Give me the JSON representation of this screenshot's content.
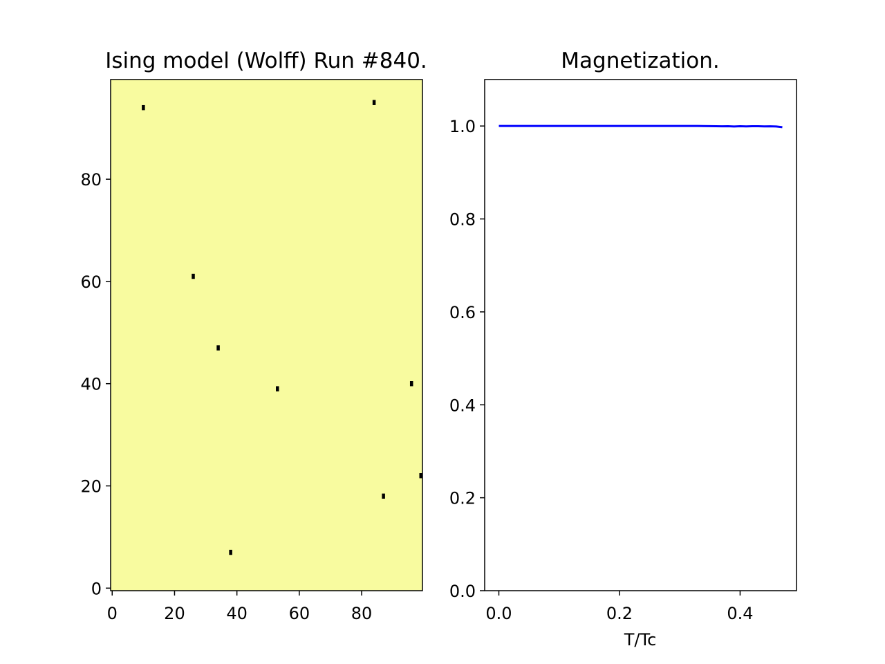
{
  "chart_data": [
    {
      "type": "heatmap",
      "title": "Ising model (Wolff) Run #840.",
      "xlabel": "",
      "ylabel": "",
      "grid_shape": [
        100,
        100
      ],
      "xlim": [
        -0.5,
        99.5
      ],
      "ylim": [
        99.5,
        -0.5
      ],
      "xticks": [
        0,
        20,
        40,
        60,
        80
      ],
      "yticks": [
        0,
        20,
        40,
        60,
        80
      ],
      "background_spin": 1,
      "background_color": "#f8fb9f",
      "flipped_spin_color": "#000000",
      "flipped_spins": [
        {
          "col": 38,
          "row": 8
        },
        {
          "col": 87,
          "row": 19
        },
        {
          "col": 99,
          "row": 23
        },
        {
          "col": 53,
          "row": 40
        },
        {
          "col": 96,
          "row": 41
        },
        {
          "col": 34,
          "row": 48
        },
        {
          "col": 26,
          "row": 62
        },
        {
          "col": 10,
          "row": 95
        },
        {
          "col": 84,
          "row": 96
        }
      ],
      "grid": false
    },
    {
      "type": "line",
      "title": "Magnetization.",
      "xlabel": "T/Tc",
      "ylabel": "",
      "xlim": [
        -0.0235,
        0.4935
      ],
      "ylim": [
        0.0,
        1.1
      ],
      "xticks": [
        "0.0",
        "0.2",
        "0.4"
      ],
      "yticks": [
        "0.0",
        "0.2",
        "0.4",
        "0.6",
        "0.8",
        "1.0"
      ],
      "grid": false,
      "series": [
        {
          "color": "#0000ff",
          "x": [
            0.0,
            0.05,
            0.1,
            0.15,
            0.2,
            0.25,
            0.3,
            0.33,
            0.35,
            0.36,
            0.37,
            0.38,
            0.39,
            0.4,
            0.41,
            0.42,
            0.43,
            0.44,
            0.45,
            0.46,
            0.47
          ],
          "values": [
            1.0,
            1.0,
            1.0,
            1.0,
            1.0,
            1.0,
            1.0,
            1.0,
            0.9998,
            0.9996,
            0.9993,
            0.9996,
            0.999,
            0.9996,
            0.9991,
            0.9995,
            0.9996,
            0.9992,
            0.9993,
            0.999,
            0.9975
          ]
        }
      ]
    }
  ]
}
